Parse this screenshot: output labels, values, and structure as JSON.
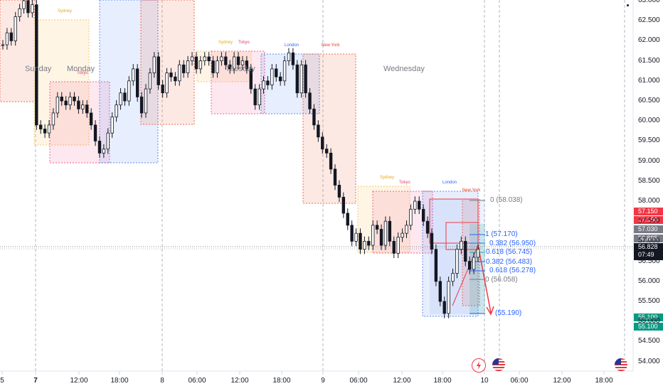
{
  "chart": {
    "price_axis": [
      "63.000",
      "62.500",
      "62.000",
      "61.500",
      "61.000",
      "60.500",
      "60.000",
      "59.500",
      "59.000",
      "58.500",
      "58.000",
      "57.500",
      "57.000",
      "56.500",
      "56.000",
      "55.500",
      "55.000",
      "54.500",
      "54.000"
    ],
    "time_axis": [
      {
        "label": "5",
        "bold": false
      },
      {
        "label": "7",
        "bold": true
      },
      {
        "label": "12:00",
        "bold": false
      },
      {
        "label": "18:00",
        "bold": false
      },
      {
        "label": "8",
        "bold": false
      },
      {
        "label": "06:00",
        "bold": false
      },
      {
        "label": "12:00",
        "bold": false
      },
      {
        "label": "18:00",
        "bold": false
      },
      {
        "label": "9",
        "bold": false
      },
      {
        "label": "06:00",
        "bold": false
      },
      {
        "label": "12:00",
        "bold": false
      },
      {
        "label": "18:00",
        "bold": false
      },
      {
        "label": "10",
        "bold": false
      },
      {
        "label": "06:00",
        "bold": false
      },
      {
        "label": "12:00",
        "bold": false
      },
      {
        "label": "18:00",
        "bold": false
      }
    ],
    "day_labels": [
      "Sunday",
      "Monday",
      "Tuesday",
      "Wednesday"
    ],
    "sessions": {
      "sydney": "Sydney",
      "tokyo": "Tokyo",
      "london": "London",
      "new_york": "New York"
    },
    "fib_levels": {
      "top": "0 (58.038)",
      "one": "1 (57.170)",
      "f0382a": "0.382 (56.950)",
      "f0618a": "0.618 (56.745)",
      "f0382b": "0.382 (56.483)",
      "f0618b": "0.618 (56.278)",
      "zero": "0 (56.058)",
      "target": "(55.190)"
    },
    "price_tags": {
      "red1": "57.150",
      "red2": "57.150",
      "gray1": "57.030",
      "gray2": "56.895",
      "current": "56.828",
      "countdown": "07:49",
      "green1": "55.100",
      "green2": "55.100"
    },
    "colors": {
      "candle": "#131722",
      "sydney": "#f7c96e",
      "tokyo": "#f06292",
      "london": "#5b8def",
      "new_york": "#ef6c4a",
      "fib": "#2962ff",
      "fib_green": "#26a69a",
      "red_tag": "#f23645",
      "green_tag": "#089981",
      "gray_tag": "#787b86"
    },
    "icons": [
      "lightning-icon",
      "us-flag-icon",
      "us-flag-icon"
    ]
  }
}
